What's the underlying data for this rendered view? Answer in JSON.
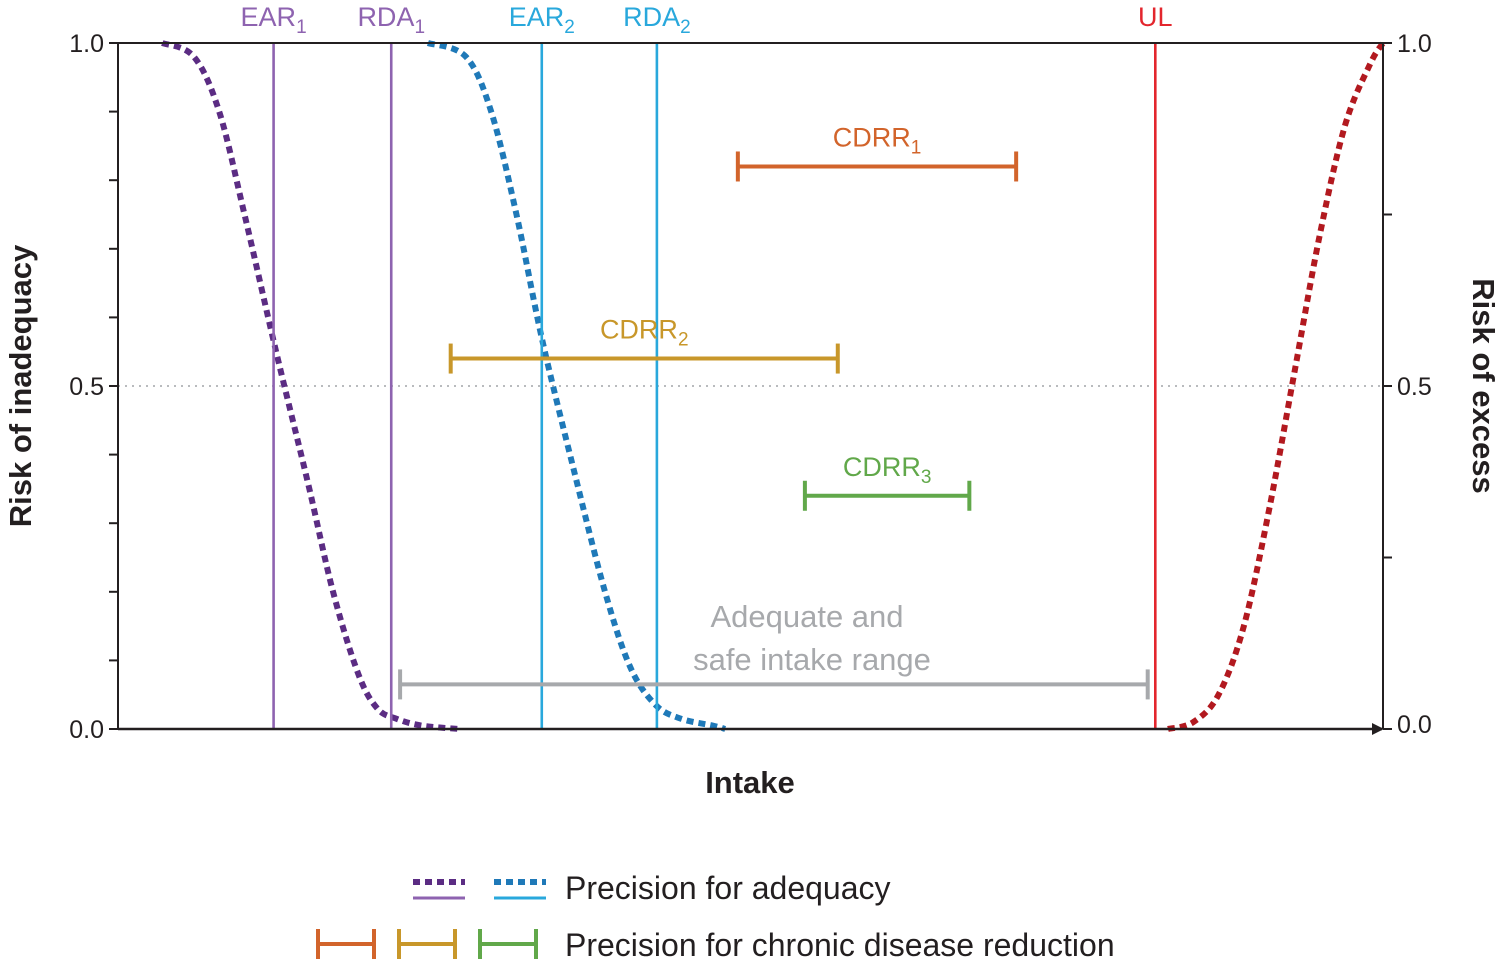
{
  "chart_data": {
    "type": "line",
    "title": "",
    "xlabel": "Intake",
    "ylabel_left": "Risk of inadequacy",
    "ylabel_right": "Risk of excess",
    "xlim": [
      0,
      100
    ],
    "ylim": [
      0,
      1
    ],
    "left_ticks": [
      "1.0",
      "0.5",
      "0.0"
    ],
    "right_ticks": [
      "1.0",
      "0.5",
      "0.0"
    ],
    "gridline_y": 0.5,
    "curves": [
      {
        "name": "Risk of inadequacy (nutrient 1)",
        "color": "#5b2c83",
        "style": "dotted",
        "x": [
          3.5,
          6.0,
          8.0,
          10.0,
          12.5,
          15.0,
          17.0,
          19.0,
          20.5,
          22.0,
          24.0,
          27.0
        ],
        "y": [
          1.0,
          0.98,
          0.9,
          0.75,
          0.55,
          0.36,
          0.2,
          0.08,
          0.03,
          0.015,
          0.005,
          0.0
        ]
      },
      {
        "name": "Risk of inadequacy (nutrient 2)",
        "color": "#1f79b8",
        "style": "dotted",
        "x": [
          24.5,
          27.5,
          29.5,
          31.5,
          33.5,
          36.0,
          38.5,
          40.5,
          42.5,
          44.5,
          47.0,
          48.0
        ],
        "y": [
          1.0,
          0.98,
          0.9,
          0.75,
          0.57,
          0.38,
          0.2,
          0.09,
          0.035,
          0.015,
          0.005,
          0.0
        ]
      },
      {
        "name": "Risk of excess",
        "color": "#b2191f",
        "style": "dotted",
        "x": [
          83.0,
          85.0,
          87.0,
          89.0,
          91.0,
          93.0,
          95.0,
          97.0,
          99.0,
          100.0
        ],
        "y": [
          0.0,
          0.01,
          0.05,
          0.15,
          0.32,
          0.52,
          0.72,
          0.88,
          0.97,
          1.0
        ]
      }
    ],
    "reference_lines": [
      {
        "label": "EAR",
        "sub": "1",
        "x": 12.3,
        "color": "#8e63b0"
      },
      {
        "label": "RDA",
        "sub": "1",
        "x": 21.6,
        "color": "#8e63b0"
      },
      {
        "label": "EAR",
        "sub": "2",
        "x": 33.5,
        "color": "#29a8dc"
      },
      {
        "label": "RDA",
        "sub": "2",
        "x": 42.6,
        "color": "#29a8dc"
      },
      {
        "label": "UL",
        "sub": "",
        "x": 82.0,
        "color": "#e3262d"
      }
    ],
    "ranges": [
      {
        "label": "CDRR",
        "sub": "1",
        "x_start": 49.0,
        "x_end": 71.0,
        "y": 0.82,
        "color": "#d2642b"
      },
      {
        "label": "CDRR",
        "sub": "2",
        "x_start": 26.3,
        "x_end": 56.9,
        "y": 0.54,
        "color": "#c8972a"
      },
      {
        "label": "CDRR",
        "sub": "3",
        "x_start": 54.3,
        "x_end": 67.3,
        "y": 0.34,
        "color": "#61a84a"
      }
    ],
    "safe_range": {
      "line1": "Adequate and",
      "line2": "safe intake range",
      "x_start": 22.3,
      "x_end": 81.4,
      "y": 0.065,
      "color": "#a7a9ac"
    },
    "legend": [
      {
        "label": "Precision for adequacy",
        "colors": [
          "#5b2c83",
          "#1f79b8"
        ],
        "line_colors": [
          "#8e63b0",
          "#29a8dc"
        ]
      },
      {
        "label": "Precision for chronic disease reduction",
        "colors": [
          "#d2642b",
          "#c8972a",
          "#61a84a"
        ]
      }
    ]
  }
}
